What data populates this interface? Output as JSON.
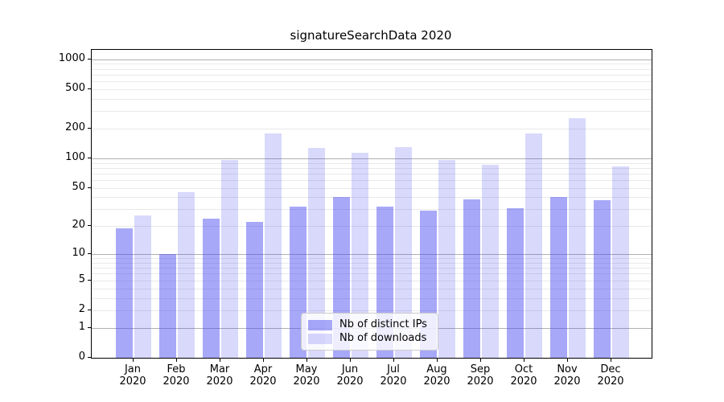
{
  "title": "signatureSearchData 2020",
  "chart_data": {
    "type": "bar",
    "title": "signatureSearchData 2020",
    "categories": [
      "Jan",
      "Feb",
      "Mar",
      "Apr",
      "May",
      "Jun",
      "Jul",
      "Aug",
      "Sep",
      "Oct",
      "Nov",
      "Dec"
    ],
    "category_year": "2020",
    "series": [
      {
        "name": "Nb of distinct IPs",
        "color": "rgba(74,74,240,0.48)",
        "values": [
          19,
          10,
          24,
          22,
          32,
          40,
          32,
          29,
          38,
          31,
          40,
          37
        ]
      },
      {
        "name": "Nb of downloads",
        "color": "rgba(74,74,240,0.21)",
        "values": [
          26,
          45,
          97,
          180,
          128,
          113,
          130,
          96,
          86,
          177,
          255,
          82
        ]
      }
    ],
    "xlabel": "",
    "ylabel": "",
    "yscale": "log1p",
    "yticks": [
      0,
      1,
      2,
      5,
      10,
      20,
      50,
      100,
      200,
      500,
      1000
    ],
    "ylim": [
      0,
      1265
    ],
    "grid": "horizontal major (powers of 10) + minor",
    "legend_position": "inside lower center",
    "colors": {
      "major_grid": "#b0b0b0",
      "minor_grid": "#e9e9e9",
      "spine": "#000000",
      "background": "#ffffff"
    }
  }
}
